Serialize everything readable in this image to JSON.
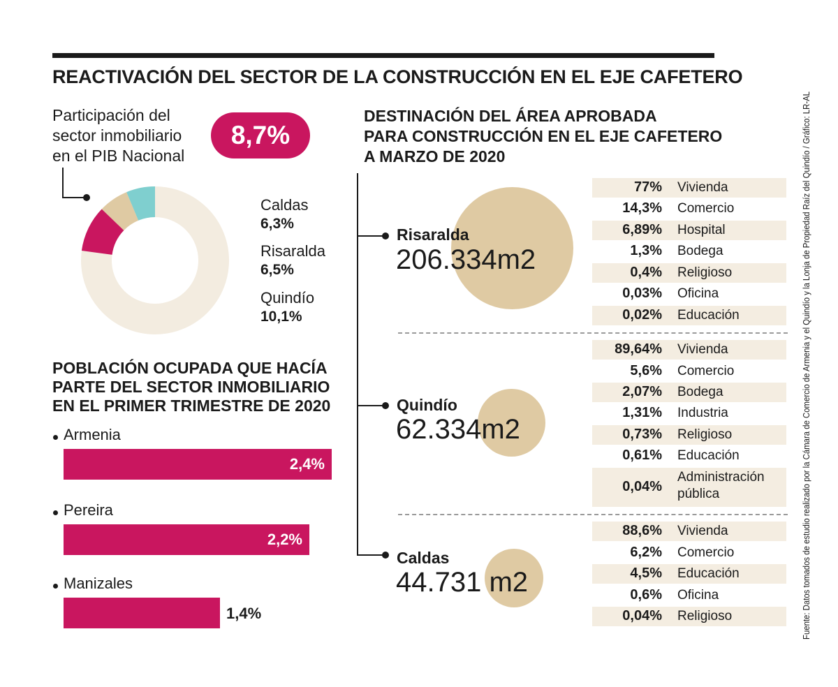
{
  "title": "REACTIVACIÓN DEL SECTOR DE LA CONSTRUCCIÓN EN EL EJE CAFETERO",
  "pib": {
    "label_lines": [
      "Participación del",
      "sector inmobiliario",
      "en el PIB Nacional"
    ],
    "value": "8,7%"
  },
  "donut": {
    "items": [
      {
        "name": "Caldas",
        "value": "6,3%"
      },
      {
        "name": "Risaralda",
        "value": "6,5%"
      },
      {
        "name": "Quindío",
        "value": "10,1%"
      }
    ]
  },
  "poblacion": {
    "title_lines": [
      "POBLACIÓN OCUPADA QUE HACÍA",
      "PARTE DEL SECTOR INMOBILIARIO",
      "EN EL PRIMER TRIMESTRE DE 2020"
    ],
    "items": [
      {
        "city": "Armenia",
        "value": "2,4%"
      },
      {
        "city": "Pereira",
        "value": "2,2%"
      },
      {
        "city": "Manizales",
        "value": "1,4%"
      }
    ]
  },
  "destinacion": {
    "title_lines": [
      "DESTINACIÓN DEL ÁREA APROBADA",
      "PARA CONSTRUCCIÓN EN EL EJE CAFETERO",
      "A MARZO DE 2020"
    ],
    "regions": [
      {
        "name": "Risaralda",
        "area": "206.334m2",
        "rows": [
          {
            "pct": "77%",
            "use": "Vivienda"
          },
          {
            "pct": "14,3%",
            "use": "Comercio"
          },
          {
            "pct": "6,89%",
            "use": "Hospital"
          },
          {
            "pct": "1,3%",
            "use": "Bodega"
          },
          {
            "pct": "0,4%",
            "use": "Religioso"
          },
          {
            "pct": "0,03%",
            "use": "Oficina"
          },
          {
            "pct": "0,02%",
            "use": "Educación"
          }
        ]
      },
      {
        "name": "Quindío",
        "area": "62.334m2",
        "rows": [
          {
            "pct": "89,64%",
            "use": "Vivienda"
          },
          {
            "pct": "5,6%",
            "use": "Comercio"
          },
          {
            "pct": "2,07%",
            "use": "Bodega"
          },
          {
            "pct": "1,31%",
            "use": "Industria"
          },
          {
            "pct": "0,73%",
            "use": "Religioso"
          },
          {
            "pct": "0,61%",
            "use": "Educación"
          },
          {
            "pct": "0,04%",
            "use": "Administración pública",
            "use_lines": [
              "Administración",
              "pública"
            ]
          }
        ]
      },
      {
        "name": "Caldas",
        "area": "44.731 m2",
        "rows": [
          {
            "pct": "88,6%",
            "use": "Vivienda"
          },
          {
            "pct": "6,2%",
            "use": "Comercio"
          },
          {
            "pct": "4,5%",
            "use": "Educación"
          },
          {
            "pct": "0,6%",
            "use": "Oficina"
          },
          {
            "pct": "0,04%",
            "use": "Religioso"
          }
        ]
      }
    ]
  },
  "source": "Fuente: Datos tomados de estudio realizado por la Cámara de Comercio de Armenia y el Quindío y la Lonja de Propiedad Raíz del Quindío / Gráfico: LR-AL",
  "colors": {
    "magenta": "#c9165f",
    "beige": "#dfcaa3",
    "cream": "#f3ece0",
    "teal": "#7fcfcf",
    "shade": "#f4ede1"
  },
  "chart_data": [
    {
      "type": "pie",
      "title": "Participación del sector inmobiliario en el PIB Nacional",
      "categories": [
        "Caldas",
        "Risaralda",
        "Quindío"
      ],
      "values": [
        6.3,
        6.5,
        10.1
      ],
      "colors": [
        "#7fcfcf",
        "#dfcaa3",
        "#c9165f"
      ]
    },
    {
      "type": "bar",
      "orientation": "horizontal",
      "title": "POBLACIÓN OCUPADA QUE HACÍA PARTE DEL SECTOR INMOBILIARIO EN EL PRIMER TRIMESTRE DE 2020",
      "categories": [
        "Armenia",
        "Pereira",
        "Manizales"
      ],
      "values": [
        2.4,
        2.2,
        1.4
      ],
      "xlim": [
        0,
        2.4
      ]
    },
    {
      "type": "table",
      "title": "DESTINACIÓN DEL ÁREA APROBADA PARA CONSTRUCCIÓN EN EL EJE CAFETERO A MARZO DE 2020",
      "regions": [
        "Risaralda",
        "Quindío",
        "Caldas"
      ],
      "area_m2": [
        206334,
        62334,
        44731
      ]
    }
  ]
}
